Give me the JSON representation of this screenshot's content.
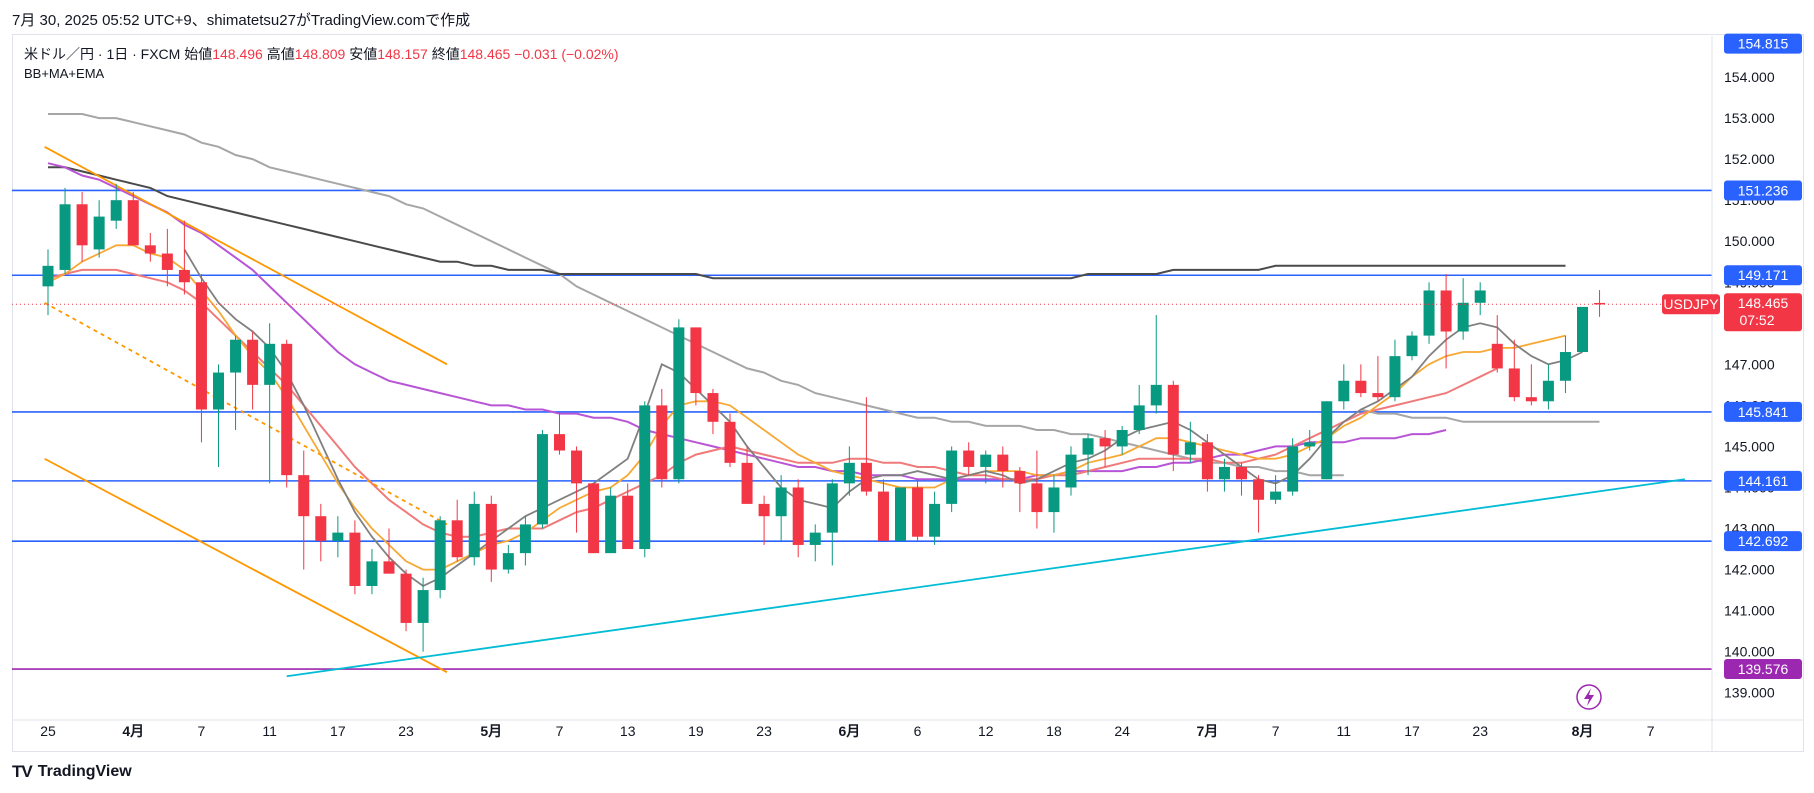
{
  "header": {
    "timestamp_line": "7月 30, 2025 05:52 UTC+9、shimatetsu27がTradingView.comで作成"
  },
  "legend": {
    "symbol": "米ドル／円 · 1日 · FXCM",
    "open_label": "始値",
    "open": "148.496",
    "high_label": "高値",
    "high": "148.809",
    "low_label": "安値",
    "low": "148.157",
    "close_label": "終値",
    "close": "148.465",
    "change": "−0.031 (−0.02%)",
    "indicator": "BB+MA+EMA"
  },
  "footer": {
    "brand": "TradingView",
    "logo": "TV"
  },
  "colors": {
    "up": "#089981",
    "down": "#f23645",
    "hline": "#2962ff",
    "hline_purple": "#9c27b0",
    "trend_orange": "#ff9800",
    "trend_cyan": "#00bcd4",
    "ma_gray": "#808080",
    "ma_orange": "#f7a833",
    "ma_red": "#f07a7a",
    "ma_purple": "#b855d6",
    "bb_light": "#a6a6a6",
    "bb_dark": "#4a4a4a"
  },
  "chart_data": {
    "type": "candlestick",
    "ylim": [
      138.7,
      155.0
    ],
    "y_ticks": [
      "154.000",
      "153.000",
      "152.000",
      "151.000",
      "150.000",
      "149.000",
      "148.000",
      "147.000",
      "146.000",
      "145.000",
      "144.000",
      "143.000",
      "142.000",
      "141.000",
      "140.000",
      "139.000"
    ],
    "x_ticks": [
      {
        "label": "25",
        "i": 0,
        "bold": false
      },
      {
        "label": "4月",
        "i": 5,
        "bold": true
      },
      {
        "label": "7",
        "i": 9,
        "bold": false
      },
      {
        "label": "11",
        "i": 13,
        "bold": false
      },
      {
        "label": "17",
        "i": 17,
        "bold": false
      },
      {
        "label": "23",
        "i": 21,
        "bold": false
      },
      {
        "label": "5月",
        "i": 26,
        "bold": true
      },
      {
        "label": "7",
        "i": 30,
        "bold": false
      },
      {
        "label": "13",
        "i": 34,
        "bold": false
      },
      {
        "label": "19",
        "i": 38,
        "bold": false
      },
      {
        "label": "23",
        "i": 42,
        "bold": false
      },
      {
        "label": "6月",
        "i": 47,
        "bold": true
      },
      {
        "label": "6",
        "i": 51,
        "bold": false
      },
      {
        "label": "12",
        "i": 55,
        "bold": false
      },
      {
        "label": "18",
        "i": 59,
        "bold": false
      },
      {
        "label": "24",
        "i": 63,
        "bold": false
      },
      {
        "label": "7月",
        "i": 68,
        "bold": true
      },
      {
        "label": "7",
        "i": 72,
        "bold": false
      },
      {
        "label": "11",
        "i": 76,
        "bold": false
      },
      {
        "label": "17",
        "i": 80,
        "bold": false
      },
      {
        "label": "23",
        "i": 84,
        "bold": false
      },
      {
        "label": "8月",
        "i": 90,
        "bold": true
      },
      {
        "label": "7",
        "i": 94,
        "bold": false
      }
    ],
    "candles": [
      [
        148.9,
        149.8,
        148.2,
        149.4
      ],
      [
        149.3,
        151.3,
        149.2,
        150.9
      ],
      [
        150.9,
        151.2,
        149.5,
        149.9
      ],
      [
        149.8,
        151.0,
        149.6,
        150.6
      ],
      [
        150.5,
        151.4,
        150.3,
        151.0
      ],
      [
        151.0,
        151.2,
        149.9,
        149.9
      ],
      [
        149.9,
        150.2,
        149.5,
        149.7
      ],
      [
        149.7,
        150.3,
        148.9,
        149.3
      ],
      [
        149.3,
        150.5,
        148.7,
        149.0
      ],
      [
        149.0,
        149.2,
        145.1,
        145.9
      ],
      [
        145.9,
        147.0,
        144.5,
        146.8
      ],
      [
        146.8,
        147.7,
        145.4,
        147.6
      ],
      [
        147.6,
        147.8,
        145.9,
        146.5
      ],
      [
        146.5,
        148.0,
        144.1,
        147.5
      ],
      [
        147.5,
        147.6,
        144.0,
        144.3
      ],
      [
        144.3,
        144.9,
        142.0,
        143.3
      ],
      [
        143.3,
        143.6,
        142.2,
        142.7
      ],
      [
        142.7,
        143.3,
        142.3,
        142.9
      ],
      [
        142.9,
        143.2,
        141.4,
        141.6
      ],
      [
        141.6,
        142.5,
        141.4,
        142.2
      ],
      [
        142.2,
        143.0,
        141.9,
        141.9
      ],
      [
        141.9,
        142.0,
        140.5,
        140.7
      ],
      [
        140.7,
        141.8,
        140.0,
        141.5
      ],
      [
        141.5,
        143.3,
        141.3,
        143.2
      ],
      [
        143.2,
        143.7,
        142.2,
        142.3
      ],
      [
        142.3,
        143.9,
        142.1,
        143.6
      ],
      [
        143.6,
        143.8,
        141.7,
        142.0
      ],
      [
        142.0,
        142.6,
        141.9,
        142.4
      ],
      [
        142.4,
        143.3,
        142.1,
        143.1
      ],
      [
        143.1,
        145.4,
        143.0,
        145.3
      ],
      [
        145.3,
        145.8,
        144.8,
        144.9
      ],
      [
        144.9,
        145.0,
        142.9,
        144.1
      ],
      [
        144.1,
        144.1,
        142.4,
        142.4
      ],
      [
        142.4,
        144.0,
        142.4,
        143.8
      ],
      [
        143.8,
        144.1,
        142.5,
        142.5
      ],
      [
        142.5,
        146.1,
        142.3,
        146.0
      ],
      [
        146.0,
        146.4,
        144.0,
        144.2
      ],
      [
        144.2,
        148.1,
        144.1,
        147.9
      ],
      [
        147.9,
        147.9,
        146.0,
        146.3
      ],
      [
        146.3,
        146.4,
        145.3,
        145.6
      ],
      [
        145.6,
        145.8,
        144.5,
        144.6
      ],
      [
        144.6,
        145.0,
        143.6,
        143.6
      ],
      [
        143.6,
        143.8,
        142.6,
        143.3
      ],
      [
        143.3,
        144.3,
        142.7,
        144.0
      ],
      [
        144.0,
        144.2,
        142.3,
        142.6
      ],
      [
        142.6,
        143.1,
        142.2,
        142.9
      ],
      [
        142.9,
        144.2,
        142.1,
        144.1
      ],
      [
        144.1,
        145.0,
        143.8,
        144.6
      ],
      [
        144.6,
        146.2,
        143.8,
        143.9
      ],
      [
        143.9,
        144.2,
        142.7,
        142.7
      ],
      [
        142.7,
        144.0,
        142.7,
        144.0
      ],
      [
        144.0,
        144.2,
        142.7,
        142.8
      ],
      [
        142.8,
        143.9,
        142.6,
        143.6
      ],
      [
        143.6,
        145.0,
        143.4,
        144.9
      ],
      [
        144.9,
        145.1,
        144.3,
        144.5
      ],
      [
        144.5,
        144.9,
        144.1,
        144.8
      ],
      [
        144.8,
        145.0,
        144.0,
        144.4
      ],
      [
        144.4,
        144.5,
        143.4,
        144.1
      ],
      [
        144.1,
        144.9,
        143.0,
        143.4
      ],
      [
        143.4,
        144.3,
        142.9,
        144.0
      ],
      [
        144.0,
        145.0,
        143.8,
        144.8
      ],
      [
        144.8,
        145.3,
        144.3,
        145.2
      ],
      [
        145.2,
        145.4,
        144.5,
        145.0
      ],
      [
        145.0,
        145.5,
        144.8,
        145.4
      ],
      [
        145.4,
        146.5,
        145.3,
        146.0
      ],
      [
        146.0,
        148.2,
        145.8,
        146.5
      ],
      [
        146.5,
        146.6,
        144.4,
        144.8
      ],
      [
        144.8,
        145.6,
        144.6,
        145.1
      ],
      [
        145.1,
        145.3,
        143.9,
        144.2
      ],
      [
        144.2,
        144.7,
        143.9,
        144.5
      ],
      [
        144.5,
        144.6,
        143.8,
        144.2
      ],
      [
        144.2,
        144.3,
        142.9,
        143.7
      ],
      [
        143.7,
        144.3,
        143.6,
        143.9
      ],
      [
        143.9,
        145.2,
        143.8,
        145.0
      ],
      [
        145.0,
        145.4,
        144.9,
        145.1
      ],
      [
        144.2,
        146.1,
        144.2,
        146.1
      ],
      [
        146.1,
        147.0,
        145.9,
        146.6
      ],
      [
        146.6,
        147.0,
        146.2,
        146.3
      ],
      [
        146.3,
        147.2,
        146.1,
        146.2
      ],
      [
        146.2,
        147.6,
        146.1,
        147.2
      ],
      [
        147.2,
        147.8,
        147.1,
        147.7
      ],
      [
        147.7,
        149.0,
        147.5,
        148.8
      ],
      [
        148.8,
        149.2,
        146.9,
        147.8
      ],
      [
        147.8,
        149.1,
        147.6,
        148.5
      ],
      [
        148.5,
        149.0,
        148.2,
        148.8
      ],
      [
        147.5,
        148.2,
        146.8,
        146.9
      ],
      [
        146.9,
        147.6,
        146.1,
        146.2
      ],
      [
        146.2,
        147.0,
        146.0,
        146.1
      ],
      [
        146.1,
        147.0,
        145.9,
        146.6
      ],
      [
        146.6,
        147.7,
        146.3,
        147.3
      ],
      [
        147.3,
        148.3,
        147.3,
        148.4
      ],
      [
        148.496,
        148.809,
        148.157,
        148.465
      ]
    ],
    "ma_short": {
      "name": "",
      "start": 8,
      "values": [
        149.8,
        149.1,
        148.5,
        148.1,
        147.8,
        147.4,
        146.8,
        146.0,
        145.1,
        144.2,
        143.4,
        142.8,
        142.3,
        141.9,
        141.6,
        141.8,
        142.1,
        142.4,
        142.7,
        143.0,
        143.3,
        143.5,
        143.7,
        143.9,
        144.1,
        144.4,
        144.7,
        145.8,
        147.0,
        146.8,
        146.4,
        146.0,
        145.6,
        145.0,
        144.5,
        144.0,
        143.7,
        143.6,
        143.5,
        143.9,
        144.2,
        144.3,
        144.3,
        144.4,
        144.3,
        144.2,
        144.3,
        144.4,
        144.3,
        144.1,
        144.2,
        144.4,
        144.6,
        144.7,
        144.9,
        145.2,
        145.4,
        145.5,
        145.6,
        145.4,
        145.1,
        144.8,
        144.5,
        144.2,
        144.1,
        144.3,
        144.7,
        145.2,
        145.6,
        145.9,
        146.1,
        146.4,
        146.7,
        147.2,
        147.6,
        147.9,
        148.0,
        147.9,
        147.5,
        147.2,
        147.0,
        147.1,
        147.3
      ]
    },
    "ma_orange": {
      "name": "",
      "start": 0,
      "values": [
        149.0,
        149.2,
        149.5,
        149.7,
        149.9,
        149.9,
        149.7,
        149.6,
        149.3,
        148.8,
        148.3,
        147.7,
        147.2,
        146.8,
        146.2,
        145.5,
        144.8,
        144.1,
        143.5,
        143.0,
        142.6,
        142.2,
        142.0,
        142.0,
        142.2,
        142.4,
        142.6,
        142.7,
        142.9,
        143.2,
        143.5,
        143.7,
        143.9,
        144.0,
        144.3,
        144.8,
        145.5,
        146.0,
        146.1,
        146.1,
        146.0,
        145.7,
        145.4,
        145.1,
        144.8,
        144.6,
        144.4,
        144.3,
        144.2,
        144.1,
        144.0,
        144.0,
        144.0,
        144.2,
        144.3,
        144.4,
        144.4,
        144.4,
        144.3,
        144.3,
        144.4,
        144.6,
        144.7,
        144.8,
        145.0,
        145.2,
        145.2,
        145.1,
        145.0,
        144.9,
        144.8,
        144.7,
        144.7,
        144.8,
        145.0,
        145.2,
        145.5,
        145.7,
        146.0,
        146.3,
        146.7,
        147.0,
        147.2,
        147.3,
        147.3,
        147.4,
        147.4,
        147.5,
        147.6,
        147.7
      ]
    },
    "ma_red": {
      "name": "",
      "start": 0,
      "values": [
        149.1,
        149.2,
        149.3,
        149.3,
        149.3,
        149.2,
        149.1,
        149.0,
        148.8,
        148.5,
        148.1,
        147.7,
        147.3,
        146.9,
        146.5,
        146.0,
        145.5,
        145.0,
        144.5,
        144.1,
        143.7,
        143.4,
        143.1,
        142.9,
        142.8,
        142.8,
        142.9,
        143.0,
        143.0,
        143.0,
        143.2,
        143.4,
        143.5,
        143.7,
        143.9,
        144.1,
        144.3,
        144.6,
        144.8,
        144.9,
        145.0,
        144.9,
        144.8,
        144.7,
        144.6,
        144.6,
        144.6,
        144.7,
        144.7,
        144.6,
        144.6,
        144.5,
        144.5,
        144.4,
        144.3,
        144.3,
        144.2,
        144.2,
        144.2,
        144.3,
        144.3,
        144.4,
        144.5,
        144.6,
        144.7,
        144.7,
        144.7,
        144.7,
        144.7,
        144.6,
        144.6,
        144.7,
        144.8,
        145.0,
        145.2,
        145.4,
        145.6,
        145.8,
        145.9,
        146.0,
        146.1,
        146.2,
        146.3,
        146.5,
        146.7,
        146.9
      ]
    },
    "ma_purple": {
      "name": "",
      "start": 0,
      "values": [
        151.9,
        151.8,
        151.6,
        151.5,
        151.3,
        151.1,
        150.9,
        150.7,
        150.4,
        150.2,
        149.9,
        149.6,
        149.3,
        148.9,
        148.5,
        148.1,
        147.7,
        147.3,
        147.0,
        146.8,
        146.6,
        146.5,
        146.4,
        146.3,
        146.2,
        146.1,
        146.0,
        146.0,
        145.9,
        145.9,
        145.8,
        145.8,
        145.7,
        145.7,
        145.6,
        145.4,
        145.3,
        145.2,
        145.1,
        145.0,
        144.9,
        144.8,
        144.7,
        144.6,
        144.5,
        144.5,
        144.4,
        144.4,
        144.3,
        144.3,
        144.3,
        144.2,
        144.2,
        144.2,
        144.2,
        144.2,
        144.2,
        144.2,
        144.3,
        144.3,
        144.4,
        144.4,
        144.4,
        144.4,
        144.5,
        144.5,
        144.6,
        144.6,
        144.7,
        144.8,
        144.8,
        144.9,
        145.0,
        145.0,
        145.1,
        145.1,
        145.1,
        145.2,
        145.2,
        145.2,
        145.3,
        145.3,
        145.4
      ]
    },
    "bb_light": {
      "name": "",
      "start": 0,
      "values": [
        153.1,
        153.1,
        153.1,
        153.0,
        153.0,
        152.9,
        152.8,
        152.7,
        152.6,
        152.4,
        152.3,
        152.1,
        152.0,
        151.8,
        151.7,
        151.6,
        151.5,
        151.4,
        151.3,
        151.2,
        151.1,
        150.9,
        150.8,
        150.6,
        150.4,
        150.2,
        150.0,
        149.8,
        149.6,
        149.4,
        149.2,
        148.9,
        148.7,
        148.5,
        148.3,
        148.1,
        147.9,
        147.7,
        147.5,
        147.3,
        147.1,
        146.9,
        146.8,
        146.6,
        146.5,
        146.3,
        146.2,
        146.1,
        146.0,
        145.9,
        145.8,
        145.7,
        145.7,
        145.6,
        145.6,
        145.5,
        145.5,
        145.5,
        145.4,
        145.4,
        145.3,
        145.3,
        145.2,
        145.1,
        145.0,
        144.9,
        144.8,
        144.7,
        144.6,
        144.6,
        144.5,
        144.5,
        144.4,
        144.4,
        144.3,
        144.3,
        144.3
      ]
    },
    "bb_dark": {
      "name": "",
      "start": 0,
      "values": [
        151.8,
        151.8,
        151.7,
        151.6,
        151.5,
        151.4,
        151.3,
        151.1,
        151.0,
        150.9,
        150.8,
        150.7,
        150.6,
        150.5,
        150.4,
        150.3,
        150.2,
        150.1,
        150.0,
        149.9,
        149.8,
        149.7,
        149.6,
        149.5,
        149.5,
        149.4,
        149.4,
        149.3,
        149.3,
        149.3,
        149.2,
        149.2,
        149.2,
        149.2,
        149.2,
        149.2,
        149.2,
        149.2,
        149.2,
        149.1,
        149.1,
        149.1,
        149.1,
        149.1,
        149.1,
        149.1,
        149.1,
        149.1,
        149.1,
        149.1,
        149.1,
        149.1,
        149.1,
        149.1,
        149.1,
        149.1,
        149.1,
        149.1,
        149.1,
        149.1,
        149.1,
        149.2,
        149.2,
        149.2,
        149.2,
        149.2,
        149.3,
        149.3,
        149.3,
        149.3,
        149.3,
        149.3,
        149.4,
        149.4,
        149.4,
        149.4,
        149.4,
        149.4,
        149.4,
        149.4,
        149.4,
        149.4,
        149.4,
        149.4,
        149.4,
        149.4,
        149.4,
        149.4,
        149.4,
        149.4
      ]
    },
    "bb_light_tail": {
      "start": 77,
      "values": [
        145.9,
        145.8,
        145.8,
        145.7,
        145.7,
        145.7,
        145.6,
        145.6,
        145.6,
        145.6,
        145.6,
        145.6,
        145.6,
        145.6,
        145.6
      ]
    },
    "horizontal_levels": [
      {
        "value": 151.236,
        "label": "151.236",
        "color": "#2962ff"
      },
      {
        "value": 149.171,
        "label": "149.171",
        "color": "#2962ff"
      },
      {
        "value": 145.841,
        "label": "145.841",
        "color": "#2962ff"
      },
      {
        "value": 144.161,
        "label": "144.161",
        "color": "#2962ff"
      },
      {
        "value": 142.692,
        "label": "142.692",
        "color": "#2962ff"
      },
      {
        "value": 139.576,
        "label": "139.576",
        "color": "#9c27b0"
      }
    ],
    "top_tag": {
      "value": 154.815,
      "label": "154.815"
    },
    "price_tag": {
      "symbol": "USDJPY",
      "value": 148.465,
      "label": "148.465",
      "countdown": "07:52"
    },
    "trendlines": [
      {
        "color": "#ff9800",
        "dash": false,
        "x1": -0.2,
        "y1": 152.3,
        "x2": 23.4,
        "y2": 147.0
      },
      {
        "color": "#ff9800",
        "dash": false,
        "x1": -0.2,
        "y1": 144.7,
        "x2": 23.4,
        "y2": 139.5
      },
      {
        "color": "#ff9800",
        "dash": true,
        "x1": -0.2,
        "y1": 148.5,
        "x2": 23.4,
        "y2": 143.1
      },
      {
        "color": "#00bcd4",
        "dash": false,
        "x1": 14.0,
        "y1": 139.4,
        "x2": 96.0,
        "y2": 144.2
      }
    ]
  }
}
